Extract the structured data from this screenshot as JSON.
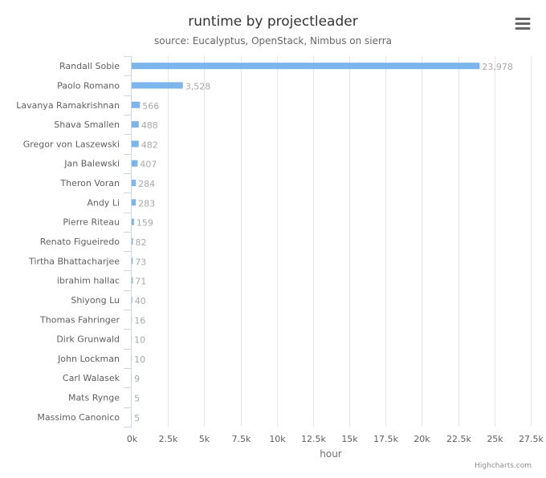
{
  "chart_data": {
    "type": "bar",
    "orientation": "horizontal",
    "title": "runtime by projectleader",
    "subtitle": "source: Eucalyptus, OpenStack, Nimbus on sierra",
    "xlabel": "hour",
    "ylabel": "",
    "categories": [
      "Randall Sobie",
      "Paolo Romano",
      "Lavanya Ramakrishnan",
      "Shava Smallen",
      "Gregor von Laszewski",
      "Jan Balewski",
      "Theron Voran",
      "Andy Li",
      "Pierre Riteau",
      "Renato Figueiredo",
      "Tirtha Bhattacharjee",
      "ibrahim hallac",
      "Shiyong Lu",
      "Thomas Fahringer",
      "Dirk Grunwald",
      "John Lockman",
      "Carl Walasek",
      "Mats Rynge",
      "Massimo Canonico"
    ],
    "values": [
      23978,
      3528,
      566,
      488,
      482,
      407,
      284,
      283,
      159,
      82,
      73,
      71,
      40,
      16,
      10,
      10,
      9,
      5,
      5
    ],
    "value_labels": [
      "23,978",
      "3,528",
      "566",
      "488",
      "482",
      "407",
      "284",
      "283",
      "159",
      "82",
      "73",
      "71",
      "40",
      "16",
      "10",
      "10",
      "9",
      "5",
      "5"
    ],
    "xlim": [
      0,
      27500
    ],
    "x_ticks": [
      0,
      2500,
      5000,
      7500,
      10000,
      12500,
      15000,
      17500,
      20000,
      22500,
      25000,
      27500
    ],
    "x_tick_labels": [
      "0k",
      "2.5k",
      "5k",
      "7.5k",
      "10k",
      "12.5k",
      "15k",
      "17.5k",
      "20k",
      "22.5k",
      "25k",
      "27.5k"
    ],
    "grid": true,
    "bar_color": "#7cb5ec"
  },
  "credits": "Highcharts.com",
  "menu_icon": "hamburger-menu-icon"
}
